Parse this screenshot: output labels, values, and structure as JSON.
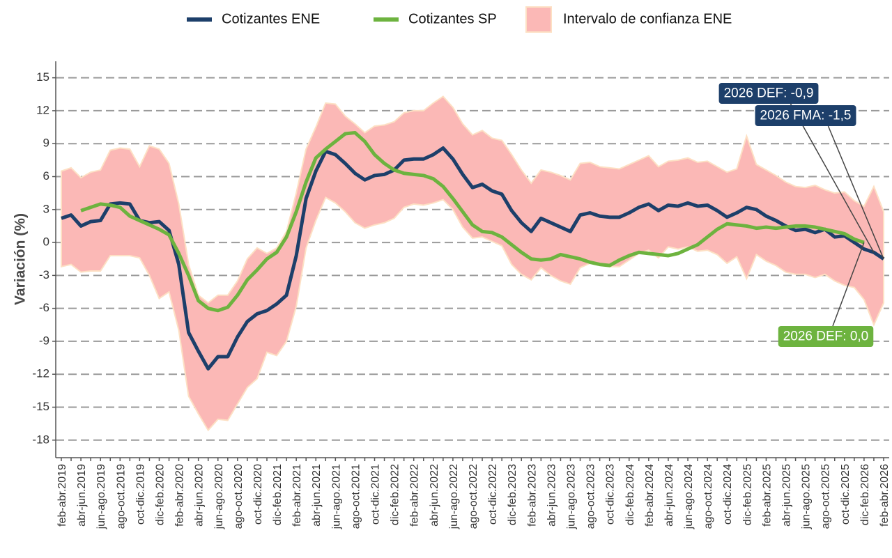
{
  "chart_data": {
    "type": "line",
    "y_label": "Variación (%)",
    "legend": "top",
    "grid": true,
    "ylim": [
      -19.6,
      16.5
    ],
    "yticks": [
      15,
      12,
      9,
      6,
      3,
      0,
      -3,
      -6,
      -9,
      -12,
      -15,
      -18
    ],
    "categories": [
      "feb-abr.2019",
      null,
      "abr-jun.2019",
      null,
      "jun-ago.2019",
      null,
      "ago-oct.2019",
      null,
      "oct-dic.2019",
      null,
      "dic-feb.2020",
      null,
      "feb-abr.2020",
      null,
      "abr-jun.2020",
      null,
      "jun-ago.2020",
      null,
      "ago-oct.2020",
      null,
      "oct-dic.2020",
      null,
      "dic-feb.2021",
      null,
      "feb-abr.2021",
      null,
      "abr-jun.2021",
      null,
      "jun-ago.2021",
      null,
      "ago-oct.2021",
      null,
      "oct-dic.2021",
      null,
      "dic-feb.2022",
      null,
      "feb-abr.2022",
      null,
      "abr-jun.2022",
      null,
      "jun-ago.2022",
      null,
      "ago-oct.2022",
      null,
      "oct-dic.2022",
      null,
      "dic-feb.2023",
      null,
      "feb-abr.2023",
      null,
      "abr-jun.2023",
      null,
      "jun-ago.2023",
      null,
      "ago-oct.2023",
      null,
      "oct-dic.2023",
      null,
      "dic-feb.2024",
      null,
      "feb-abr.2024",
      null,
      "abr-jun.2024",
      null,
      "jun-ago.2024",
      null,
      "ago-oct.2024",
      null,
      "oct-dic.2024",
      null,
      "dic-feb.2025",
      null,
      "feb-abr.2025",
      null,
      "abr-jun.2025",
      null,
      "jun-ago.2025",
      null,
      "ago-oct.2025",
      null,
      "oct-dic.2025",
      null,
      "dic-feb.2026",
      null,
      "feb-abr.2026"
    ],
    "band": {
      "name": "Intervalo de confianza ENE",
      "color": "#fbb8b6",
      "border": "#fde0c4",
      "upper": [
        6.5,
        6.8,
        5.9,
        6.4,
        6.6,
        8.4,
        8.6,
        8.5,
        6.9,
        8.8,
        8.5,
        7.2,
        3.5,
        -2.0,
        -4.8,
        -5.5,
        -4.8,
        -4.8,
        -3.5,
        -1.5,
        -0.5,
        -1.0,
        -0.5,
        1.0,
        4.5,
        8.5,
        10.5,
        12.7,
        12.6,
        11.5,
        10.8,
        10.0,
        10.6,
        10.7,
        11.0,
        11.8,
        12.0,
        12.0,
        12.7,
        13.3,
        12.3,
        10.8,
        9.8,
        10.2,
        9.5,
        9.3,
        8.0,
        6.6,
        5.4,
        6.6,
        6.4,
        6.1,
        5.7,
        7.2,
        7.3,
        6.9,
        6.8,
        6.7,
        7.1,
        7.5,
        7.9,
        6.9,
        7.4,
        7.5,
        7.7,
        7.3,
        7.4,
        6.9,
        6.4,
        6.7,
        9.7,
        7.1,
        6.6,
        6.1,
        5.5,
        5.1,
        5.0,
        5.2,
        4.8,
        4.5,
        4.6,
        3.8,
        3.3,
        5.1,
        2.8
      ],
      "lower": [
        -2.2,
        -2.0,
        -2.7,
        -2.6,
        -2.6,
        -1.2,
        -1.2,
        -1.2,
        -1.4,
        -3.0,
        -5.1,
        -4.5,
        -8.0,
        -14.0,
        -15.6,
        -17.1,
        -16.1,
        -16.2,
        -14.7,
        -13.2,
        -12.4,
        -10.0,
        -10.3,
        -9.0,
        -5.8,
        -0.5,
        2.0,
        4.1,
        3.6,
        2.8,
        1.8,
        1.3,
        1.6,
        1.8,
        2.2,
        3.2,
        3.5,
        3.4,
        3.6,
        3.9,
        3.0,
        1.4,
        0.4,
        0.5,
        0.1,
        -0.3,
        -2.0,
        -2.9,
        -3.4,
        -2.3,
        -3.0,
        -3.5,
        -3.8,
        -2.3,
        -1.9,
        -2.0,
        -2.2,
        -2.2,
        -1.6,
        -1.0,
        -0.7,
        -1.4,
        -0.4,
        -0.6,
        -0.4,
        -0.8,
        -0.7,
        -1.1,
        -1.9,
        -1.3,
        -3.3,
        -1.1,
        -1.7,
        -2.1,
        -2.7,
        -2.9,
        -2.9,
        -3.2,
        -2.9,
        -3.5,
        -3.9,
        -4.1,
        -5.2,
        -7.5,
        -5.5
      ]
    },
    "series": [
      {
        "name": "Cotizantes ENE",
        "color": "#1d3f6a",
        "values": [
          2.2,
          2.5,
          1.5,
          1.9,
          2.0,
          3.5,
          3.6,
          3.5,
          2.0,
          1.8,
          1.9,
          1.1,
          -2.0,
          -8.2,
          -9.9,
          -11.5,
          -10.4,
          -10.4,
          -8.6,
          -7.2,
          -6.5,
          -6.2,
          -5.6,
          -4.8,
          -1.2,
          4.0,
          6.5,
          8.3,
          8.0,
          7.2,
          6.3,
          5.7,
          6.1,
          6.2,
          6.6,
          7.5,
          7.6,
          7.6,
          8.0,
          8.6,
          7.6,
          6.2,
          5.0,
          5.3,
          4.7,
          4.4,
          2.9,
          1.8,
          1.0,
          2.2,
          1.8,
          1.4,
          1.0,
          2.5,
          2.7,
          2.4,
          2.3,
          2.3,
          2.7,
          3.2,
          3.5,
          2.9,
          3.4,
          3.3,
          3.6,
          3.3,
          3.4,
          2.9,
          2.3,
          2.7,
          3.2,
          3.0,
          2.4,
          2.0,
          1.5,
          1.1,
          1.2,
          0.9,
          1.2,
          0.5,
          0.6,
          0.0,
          -0.6,
          -0.9,
          -1.5
        ],
        "value_labels": [
          null,
          null,
          null,
          null,
          null,
          null,
          null,
          null,
          null,
          null,
          null,
          null,
          null,
          null,
          null,
          null,
          null,
          null,
          null,
          null,
          null,
          null,
          null,
          null,
          null,
          null,
          null,
          null,
          null,
          null,
          null,
          null,
          null,
          null,
          null,
          null,
          null,
          null,
          null,
          null,
          null,
          null,
          null,
          null,
          null,
          null,
          null,
          null,
          null,
          null,
          null,
          null,
          null,
          null,
          null,
          null,
          null,
          null,
          null,
          null,
          null,
          null,
          null,
          null,
          null,
          null,
          null,
          null,
          null,
          null,
          null,
          null,
          null,
          null,
          null,
          null,
          null,
          null,
          null,
          null,
          null,
          null,
          null,
          "2026 DEF: -0,9",
          "2026 FMA: -1,5"
        ]
      },
      {
        "name": "Cotizantes SP",
        "color": "#6db33f",
        "values": [
          null,
          null,
          2.9,
          3.2,
          3.5,
          3.4,
          3.2,
          2.4,
          2.0,
          1.6,
          1.2,
          0.7,
          -1.0,
          -3.0,
          -5.3,
          -6.0,
          -6.2,
          -5.9,
          -4.8,
          -3.4,
          -2.5,
          -1.5,
          -0.9,
          0.5,
          2.8,
          5.5,
          7.7,
          8.5,
          9.2,
          9.9,
          10.0,
          9.2,
          8.0,
          7.2,
          6.6,
          6.3,
          6.2,
          6.1,
          5.8,
          5.1,
          4.0,
          2.8,
          1.6,
          1.0,
          0.9,
          0.5,
          -0.2,
          -0.9,
          -1.5,
          -1.6,
          -1.5,
          -1.1,
          -1.3,
          -1.5,
          -1.8,
          -2.0,
          -2.1,
          -1.6,
          -1.2,
          -0.9,
          -1.0,
          -1.1,
          -1.2,
          -1.0,
          -0.6,
          -0.2,
          0.5,
          1.2,
          1.7,
          1.6,
          1.5,
          1.3,
          1.4,
          1.3,
          1.4,
          1.5,
          1.5,
          1.4,
          1.2,
          1.0,
          0.8,
          0.3,
          0.0,
          null,
          null
        ],
        "value_labels": [
          null,
          null,
          null,
          null,
          null,
          null,
          null,
          null,
          null,
          null,
          null,
          null,
          null,
          null,
          null,
          null,
          null,
          null,
          null,
          null,
          null,
          null,
          null,
          null,
          null,
          null,
          null,
          null,
          null,
          null,
          null,
          null,
          null,
          null,
          null,
          null,
          null,
          null,
          null,
          null,
          null,
          null,
          null,
          null,
          null,
          null,
          null,
          null,
          null,
          null,
          null,
          null,
          null,
          null,
          null,
          null,
          null,
          null,
          null,
          null,
          null,
          null,
          null,
          null,
          null,
          null,
          null,
          null,
          null,
          null,
          null,
          null,
          null,
          null,
          null,
          null,
          null,
          null,
          null,
          null,
          null,
          null,
          "2026 DEF: 0,0",
          null,
          null
        ]
      }
    ]
  }
}
